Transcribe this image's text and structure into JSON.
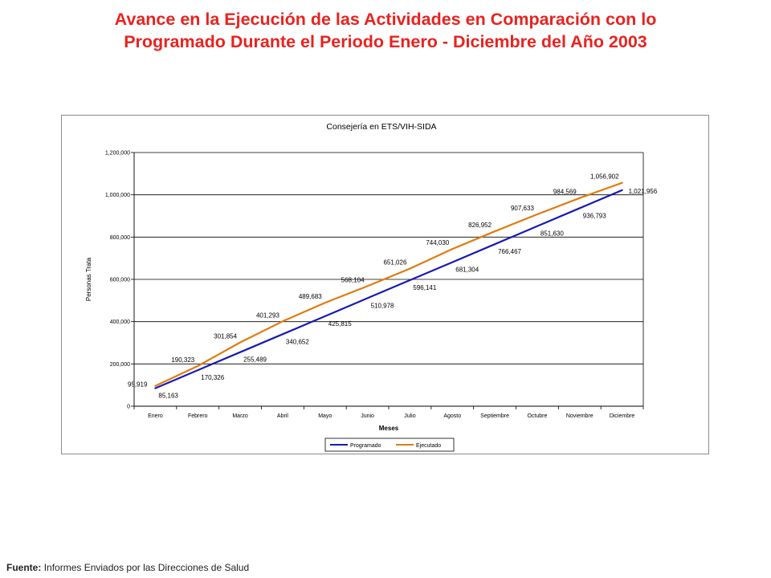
{
  "slide": {
    "title_line1": "Avance en la Ejecución de las Actividades en Comparación con lo",
    "title_line2": "Programado Durante el Periodo Enero - Diciembre del Año 2003"
  },
  "source": {
    "label": "Fuente:",
    "text": "Informes Enviados por las Direcciones de Salud"
  },
  "chart_data": {
    "type": "line",
    "title": "Consejería en ETS/VIH-SIDA",
    "xlabel": "Meses",
    "ylabel": "Personas Trata",
    "categories": [
      "Enero",
      "Febrero",
      "Marzo",
      "Abril",
      "Mayo",
      "Junio",
      "Julio",
      "Agosto",
      "Septiembre",
      "Octubre",
      "Noviembre",
      "Diciembre"
    ],
    "ylim": [
      0,
      1200000
    ],
    "yticks": [
      0,
      200000,
      400000,
      600000,
      800000,
      1000000,
      1200000
    ],
    "ytick_labels": [
      "0",
      "200,000",
      "400,000",
      "600,000",
      "800,000",
      "1,000,000",
      "1,200,000"
    ],
    "grid": true,
    "legend_position": "bottom",
    "series": [
      {
        "name": "Programado",
        "color": "#1a1ab4",
        "values": [
          85163,
          170326,
          255489,
          340652,
          425815,
          510978,
          596141,
          681304,
          766467,
          851630,
          936793,
          1021956
        ],
        "labels": [
          "85,163",
          "170,326",
          "255,489",
          "340,652",
          "425,815",
          "510,978",
          "596,141",
          "681,304",
          "766,467",
          "851,630",
          "936,793",
          "1,021,956"
        ]
      },
      {
        "name": "Ejecutado",
        "color": "#e07b10",
        "values": [
          95919,
          190323,
          301854,
          401293,
          489683,
          568104,
          651026,
          744030,
          826952,
          907633,
          984569,
          1056902
        ],
        "labels": [
          "95,919",
          "190,323",
          "301,854",
          "401,293",
          "489,683",
          "568,104",
          "651,026",
          "744,030",
          "826,952",
          "907,633",
          "984,569",
          "1,056,902"
        ]
      }
    ]
  }
}
